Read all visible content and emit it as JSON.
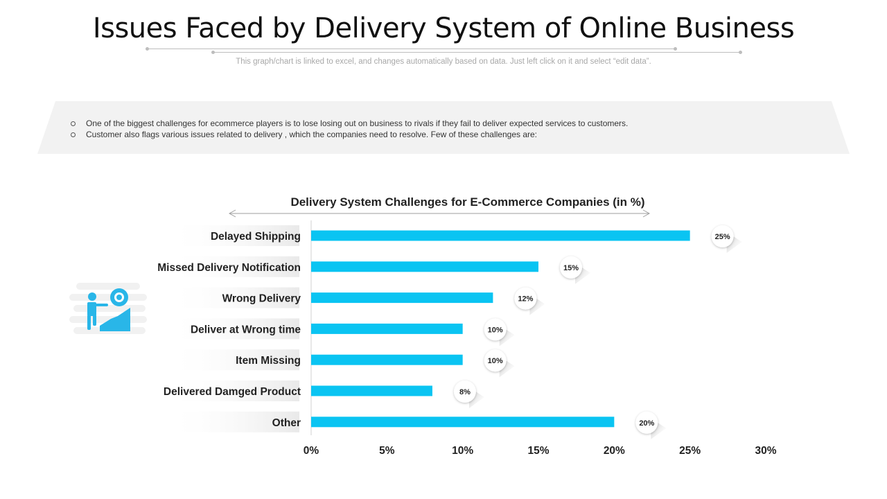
{
  "page": {
    "title": "Issues Faced by Delivery System of Online Business",
    "subtitle": "This graph/chart is linked to excel, and changes automatically based on data. Just left click on it and select “edit data”.",
    "bullets": [
      "One of the biggest challenges for ecommerce players is to lose losing out on business to rivals  if they fail to deliver  expected services  to customers.",
      "Customer also flags various  issues related to delivery  , which the companies need to resolve.  Few of these challenges are:"
    ],
    "icon": "person-climbing-gear-icon"
  },
  "colors": {
    "bar": "#0ac4f2",
    "icon": "#29b6e8",
    "rule": "#bdbdbd"
  },
  "chart_data": {
    "type": "bar",
    "orientation": "horizontal",
    "title": "Delivery System Challenges for E-Commerce Companies (in %)",
    "categories": [
      "Delayed Shipping",
      "Missed Delivery Notification",
      "Wrong Delivery",
      "Deliver at Wrong time",
      "Item Missing",
      "Delivered Damged Product",
      "Other"
    ],
    "values": [
      25,
      15,
      12,
      10,
      10,
      8,
      20
    ],
    "data_labels": [
      "25%",
      "15%",
      "12%",
      "10%",
      "10%",
      "8%",
      "20%"
    ],
    "xlim": [
      0,
      30
    ],
    "xticks": [
      "0%",
      "5%",
      "10%",
      "15%",
      "20%",
      "25%",
      "30%"
    ],
    "grid": false,
    "legend": "none"
  }
}
